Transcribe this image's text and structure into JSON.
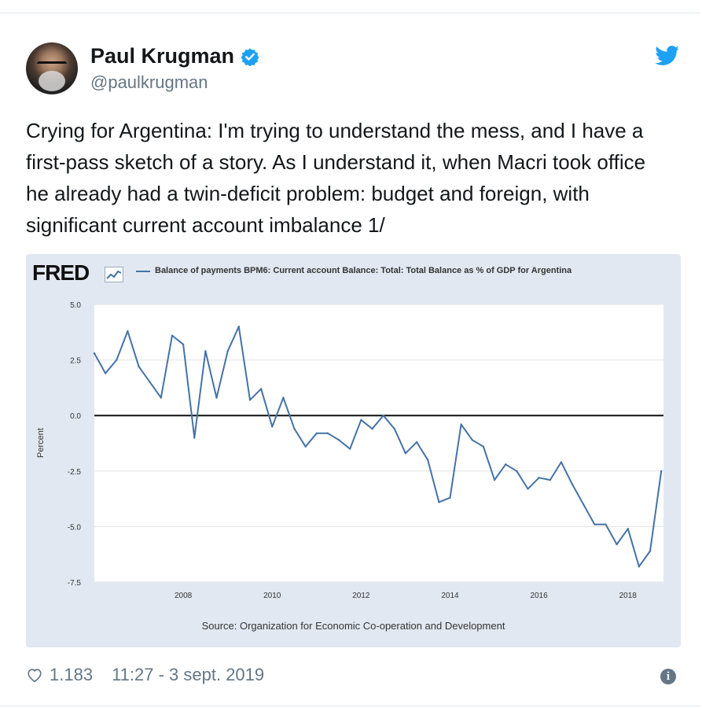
{
  "tweet": {
    "author_name": "Paul Krugman",
    "author_handle": "@paulkrugman",
    "text": "Crying for Argentina: I'm trying to understand the mess, and I have a first-pass sketch of a story. As I understand it, when Macri took office he already had a twin-deficit problem: budget and foreign, with significant current account imbalance 1/",
    "likes": "1.183",
    "timestamp": "11:27 - 3 sept. 2019",
    "colors": {
      "verified": "#1da1f2",
      "twitter_bird": "#1da1f2",
      "meta_text": "#657786"
    },
    "icons": [
      "verified-badge-icon",
      "twitter-bird-icon",
      "heart-icon",
      "info-icon"
    ]
  },
  "chart_data": {
    "type": "line",
    "logo": "FRED",
    "title": "Balance of payments BPM6: Current account Balance: Total: Total Balance as % of GDP for Argentina",
    "ylabel": "Percent",
    "xlabel": "",
    "source": "Source: Organization for Economic Co-operation and Development",
    "xlim": [
      2006.0,
      2018.8
    ],
    "ylim": [
      -7.5,
      5.0
    ],
    "yticks": [
      "5.0",
      "2.5",
      "0.0",
      "-2.5",
      "-5.0",
      "-7.5"
    ],
    "ytick_values": [
      5.0,
      2.5,
      0.0,
      -2.5,
      -5.0,
      -7.5
    ],
    "xticks": [
      "2008",
      "2010",
      "2012",
      "2014",
      "2016",
      "2018"
    ],
    "xtick_values": [
      2008,
      2010,
      2012,
      2014,
      2016,
      2018
    ],
    "grid": true,
    "zero_line": true,
    "line_color": "#4572a7",
    "x": [
      2006.0,
      2006.25,
      2006.5,
      2006.75,
      2007.0,
      2007.25,
      2007.5,
      2007.75,
      2008.0,
      2008.25,
      2008.5,
      2008.75,
      2009.0,
      2009.25,
      2009.5,
      2009.75,
      2010.0,
      2010.25,
      2010.5,
      2010.75,
      2011.0,
      2011.25,
      2011.5,
      2011.75,
      2012.0,
      2012.25,
      2012.5,
      2012.75,
      2013.0,
      2013.25,
      2013.5,
      2013.75,
      2014.0,
      2014.25,
      2014.5,
      2014.75,
      2015.0,
      2015.25,
      2015.5,
      2015.75,
      2016.0,
      2016.25,
      2016.5,
      2016.75,
      2017.0,
      2017.25,
      2017.5,
      2017.75,
      2018.0,
      2018.25,
      2018.5,
      2018.75
    ],
    "values": [
      2.8,
      1.9,
      2.5,
      3.8,
      2.2,
      1.5,
      0.8,
      3.6,
      3.2,
      -1.0,
      2.9,
      0.8,
      2.9,
      4.0,
      0.7,
      1.2,
      -0.5,
      0.8,
      -0.6,
      -1.4,
      -0.8,
      -0.8,
      -1.1,
      -1.5,
      -0.2,
      -0.6,
      0.0,
      -0.6,
      -1.7,
      -1.2,
      -2.0,
      -3.9,
      -3.7,
      -0.4,
      -1.1,
      -1.4,
      -2.9,
      -2.2,
      -2.5,
      -3.3,
      -2.8,
      -2.9,
      -2.1,
      -3.1,
      -4.0,
      -4.9,
      -4.9,
      -5.8,
      -5.1,
      -6.8,
      -6.1,
      -2.5
    ]
  }
}
